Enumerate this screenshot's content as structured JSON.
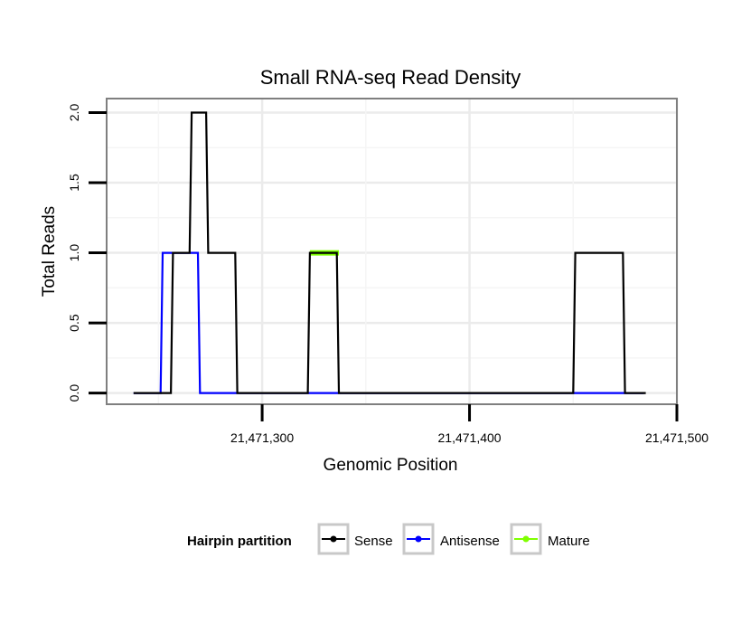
{
  "chart_data": {
    "type": "line",
    "title": "Small RNA-seq Read Density",
    "xlabel": "Genomic Position",
    "ylabel": "Total Reads",
    "xlim": [
      21471225,
      21471500
    ],
    "ylim": [
      -0.08,
      2.1
    ],
    "x_ticks": [
      {
        "value": 21471300,
        "label": "21,471,300"
      },
      {
        "value": 21471400,
        "label": "21,471,400"
      },
      {
        "value": 21471500,
        "label": "21,471,500"
      }
    ],
    "y_ticks": [
      {
        "value": 0.0,
        "label": "0.0"
      },
      {
        "value": 0.5,
        "label": "0.5"
      },
      {
        "value": 1.0,
        "label": "1.0"
      },
      {
        "value": 1.5,
        "label": "1.5"
      },
      {
        "value": 2.0,
        "label": "2.0"
      }
    ],
    "grid": true,
    "legend": {
      "title": "Hairpin partition",
      "position": "bottom",
      "entries": [
        "Sense",
        "Antisense",
        "Mature"
      ]
    },
    "series": [
      {
        "name": "Antisense",
        "color": "#0000ff",
        "x": [
          21471238,
          21471251,
          21471252,
          21471269,
          21471270,
          21471474,
          21471484
        ],
        "y": [
          0,
          0,
          1,
          1,
          0,
          0,
          0
        ]
      },
      {
        "name": "Mature",
        "color": "#7fff00",
        "x": [
          21471323,
          21471337
        ],
        "y": [
          1,
          1
        ]
      },
      {
        "name": "Sense",
        "color": "#000000",
        "x": [
          21471238,
          21471256,
          21471257,
          21471265,
          21471266,
          21471273,
          21471274,
          21471287,
          21471288,
          21471322,
          21471323,
          21471336,
          21471337,
          21471450,
          21471451,
          21471474,
          21471475,
          21471485
        ],
        "y": [
          0,
          0,
          1,
          1,
          2,
          2,
          1,
          1,
          0,
          0,
          1,
          1,
          0,
          0,
          1,
          1,
          0,
          0
        ]
      }
    ]
  }
}
